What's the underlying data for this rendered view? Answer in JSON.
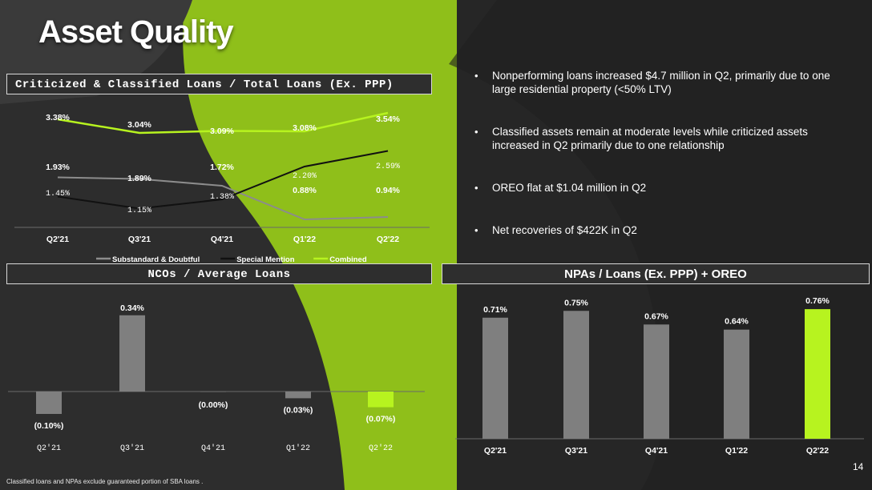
{
  "slide": {
    "title": "Asset Quality",
    "page_number": "14",
    "footnote": "Classified loans and NPAs exclude guaranteed portion of SBA loans ."
  },
  "bullets": [
    "Nonperforming loans increased $4.7 million in Q2, primarily due to one large residential property (<50% LTV)",
    "Classified assets remain at moderate levels while criticized assets increased in Q2 primarily due to one relationship",
    "OREO flat at $1.04 million in Q2",
    "Net recoveries of $422K in Q2"
  ],
  "colors": {
    "accent": "#b7f31f",
    "gray_series": "#8c8c8c",
    "black_series": "#111111"
  },
  "chart_data": [
    {
      "id": "criticized",
      "type": "line",
      "title": "Criticized & Classified Loans / Total Loans (Ex. PPP)",
      "categories": [
        "Q2'21",
        "Q3'21",
        "Q4'21",
        "Q1'22",
        "Q2'22"
      ],
      "series": [
        {
          "name": "Substandard & Doubtful",
          "color": "#8c8c8c",
          "values": [
            1.93,
            1.89,
            1.72,
            0.88,
            0.94
          ],
          "labels": [
            "1.93%",
            "1.89%",
            "1.72%",
            "0.88%",
            "0.94%"
          ]
        },
        {
          "name": "Special Mention",
          "color": "#111111",
          "values": [
            1.45,
            1.15,
            1.38,
            2.2,
            2.59
          ],
          "labels": [
            "1.45%",
            "1.15%",
            "1.38%",
            "2.20%",
            "2.59%"
          ]
        },
        {
          "name": "Combined",
          "color": "#b7f31f",
          "values": [
            3.38,
            3.04,
            3.09,
            3.08,
            3.54
          ],
          "labels": [
            "3.38%",
            "3.04%",
            "3.09%",
            "3.08%",
            "3.54%"
          ]
        }
      ],
      "legend": "bottom"
    },
    {
      "id": "nco",
      "type": "bar",
      "title": "NCOs / Average Loans",
      "categories": [
        "Q2'21",
        "Q3'21",
        "Q4'21",
        "Q1'22",
        "Q2'22"
      ],
      "values": [
        -0.1,
        0.34,
        0.0,
        -0.03,
        -0.07
      ],
      "labels": [
        "(0.10%)",
        "0.34%",
        "(0.00%)",
        "(0.03%)",
        "(0.07%)"
      ],
      "highlight_last": true
    },
    {
      "id": "npa",
      "type": "bar",
      "title": "NPAs / Loans (Ex. PPP) + OREO",
      "categories": [
        "Q2'21",
        "Q3'21",
        "Q4'21",
        "Q1'22",
        "Q2'22"
      ],
      "values": [
        0.71,
        0.75,
        0.67,
        0.64,
        0.76
      ],
      "labels": [
        "0.71%",
        "0.75%",
        "0.67%",
        "0.64%",
        "0.76%"
      ],
      "highlight_last": true
    }
  ]
}
